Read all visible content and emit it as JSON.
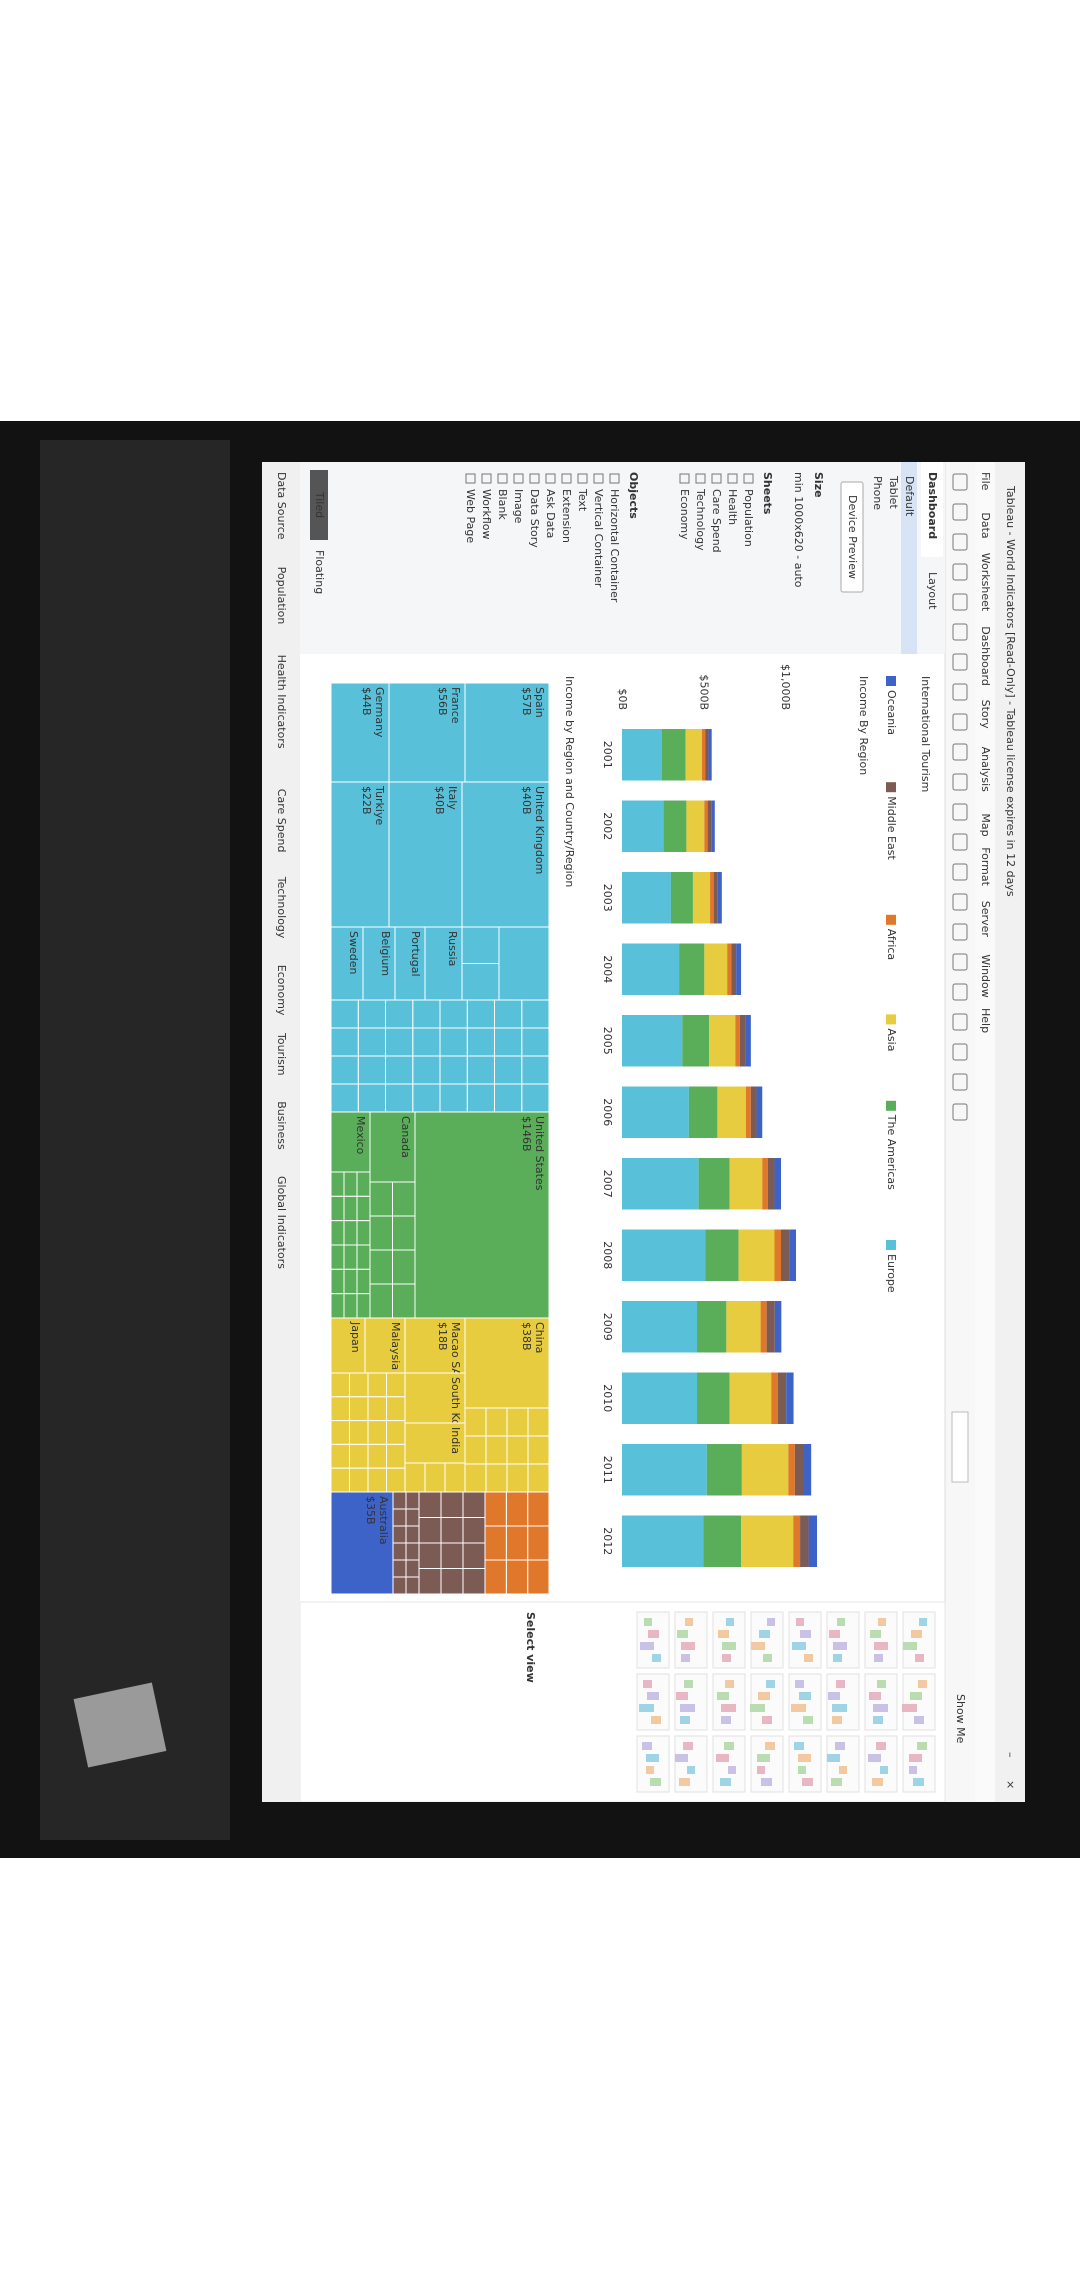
{
  "window": {
    "title": "Tableau - World Indicators [Read-Only] - Tableau license expires in 12 days",
    "menu": [
      "File",
      "Data",
      "Worksheet",
      "Dashboard",
      "Story",
      "Analysis",
      "Map",
      "Format",
      "Server",
      "Window",
      "Help"
    ],
    "show_me": "Show Me"
  },
  "left_panel": {
    "tabs": [
      "Dashboard",
      "Layout"
    ],
    "devices": [
      "Default",
      "Tablet",
      "Phone"
    ],
    "device_preview": "Device Preview",
    "size_heading": "Size",
    "size_value": "min 1000x620 - auto",
    "sheets_heading": "Sheets",
    "sheets": [
      "Population",
      "Health",
      "Care Spend",
      "Technology",
      "Economy"
    ],
    "objects_heading": "Objects",
    "objects": [
      "Horizontal Container",
      "Vertical Container",
      "Text",
      "Extension",
      "Ask Data",
      "Data Story",
      "Image",
      "Blank",
      "Workflow",
      "Web Page"
    ],
    "tiled": "Tiled",
    "floating": "Floating"
  },
  "dashboard": {
    "title": "International Tourism",
    "bar_chart": {
      "type": "bar",
      "title": "Income By Region",
      "categories": [
        "2001",
        "2002",
        "2003",
        "2004",
        "2005",
        "2006",
        "2007",
        "2008",
        "2009",
        "2010",
        "2011",
        "2012"
      ],
      "series": [
        {
          "name": "Oceania",
          "color": "#3d63c9",
          "values": [
            20,
            22,
            25,
            30,
            32,
            35,
            40,
            42,
            40,
            45,
            50,
            52
          ]
        },
        {
          "name": "Middle East",
          "color": "#7d5b55",
          "values": [
            20,
            22,
            25,
            30,
            35,
            35,
            40,
            50,
            50,
            52,
            50,
            52
          ]
        },
        {
          "name": "Africa",
          "color": "#e0782c",
          "values": [
            20,
            20,
            22,
            25,
            28,
            30,
            35,
            40,
            37,
            40,
            40,
            42
          ]
        },
        {
          "name": "Asia",
          "color": "#e8cc3f",
          "values": [
            100,
            110,
            105,
            140,
            160,
            175,
            200,
            220,
            210,
            255,
            285,
            320
          ]
        },
        {
          "name": "The Americas",
          "color": "#5aae5a",
          "values": [
            145,
            140,
            135,
            155,
            165,
            175,
            190,
            205,
            180,
            200,
            215,
            230
          ]
        },
        {
          "name": "Europe",
          "color": "#58c0d8",
          "values": [
            245,
            255,
            300,
            350,
            370,
            410,
            470,
            510,
            460,
            460,
            520,
            500
          ]
        }
      ],
      "ylim": [
        0,
        1300
      ],
      "yticks": [
        {
          "value": 0,
          "label": "$0B"
        },
        {
          "value": 500,
          "label": "$500B"
        },
        {
          "value": 1000,
          "label": "$1,000B"
        }
      ]
    },
    "treemap": {
      "title": "Income by Region and Country/Region",
      "tiles": [
        {
          "label": "Spain",
          "value_label": "$57B"
        },
        {
          "label": "France",
          "value_label": "$56B"
        },
        {
          "label": "Germany",
          "value_label": "$44B"
        },
        {
          "label": "United Kingdom",
          "value_label": "$40B"
        },
        {
          "label": "Italy",
          "value_label": "$40B"
        },
        {
          "label": "Turkiye",
          "value_label": "$22B"
        },
        {
          "label": "Russia"
        },
        {
          "label": "Portugal"
        },
        {
          "label": "Belgium"
        },
        {
          "label": "Sweden"
        },
        {
          "label": "United States",
          "value_label": "$146B"
        },
        {
          "label": "Canada"
        },
        {
          "label": "Mexico"
        },
        {
          "label": "China",
          "value_label": "$38B"
        },
        {
          "label": "Macao SAR",
          "value_label": "$18B"
        },
        {
          "label": "South Korea"
        },
        {
          "label": "India"
        },
        {
          "label": "Malaysia"
        },
        {
          "label": "Japan"
        },
        {
          "label": "Australia",
          "value_label": "$35B"
        }
      ]
    }
  },
  "show_me_panel": {
    "heading": "Select view"
  },
  "sheet_tabs": [
    "Data Source",
    "Population",
    "Health Indicators",
    "Care Spend",
    "Technology",
    "Economy",
    "Tourism",
    "Business",
    "Global Indicators"
  ]
}
